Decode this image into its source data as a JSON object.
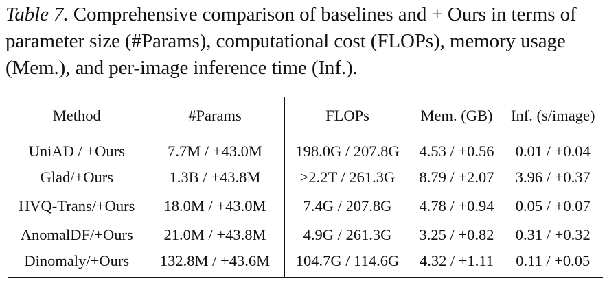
{
  "caption": {
    "label": "Table 7.",
    "text": "Comprehensive comparison of baselines and + Ours in terms of parameter size (#Params), computational cost (FLOPs), memory usage (Mem.), and per-image inference time (Inf.)."
  },
  "table": {
    "headers": [
      "Method",
      "#Params",
      "FLOPs",
      "Mem. (GB)",
      "Inf. (s/image)"
    ],
    "rows": [
      [
        "UniAD / +Ours",
        "7.7M / +43.0M",
        "198.0G / 207.8G",
        "4.53 / +0.56",
        "0.01 / +0.04"
      ],
      [
        "Glad/+Ours",
        "1.3B / +43.8M",
        ">2.2T / 261.3G",
        "8.79 / +2.07",
        "3.96 / +0.37"
      ],
      [
        "HVQ-Trans/+Ours",
        "18.0M / +43.0M",
        "7.4G / 207.8G",
        "4.78 / +0.94",
        "0.05 / +0.07"
      ],
      [
        "AnomalDF/+Ours",
        "21.0M / +43.8M",
        "4.9G / 261.3G",
        "3.25 / +0.82",
        "0.31 / +0.32"
      ],
      [
        "Dinomaly/+Ours",
        "132.8M / +43.6M",
        "104.7G / 114.6G",
        "4.32 / +1.11",
        "0.11 / +0.05"
      ]
    ]
  }
}
